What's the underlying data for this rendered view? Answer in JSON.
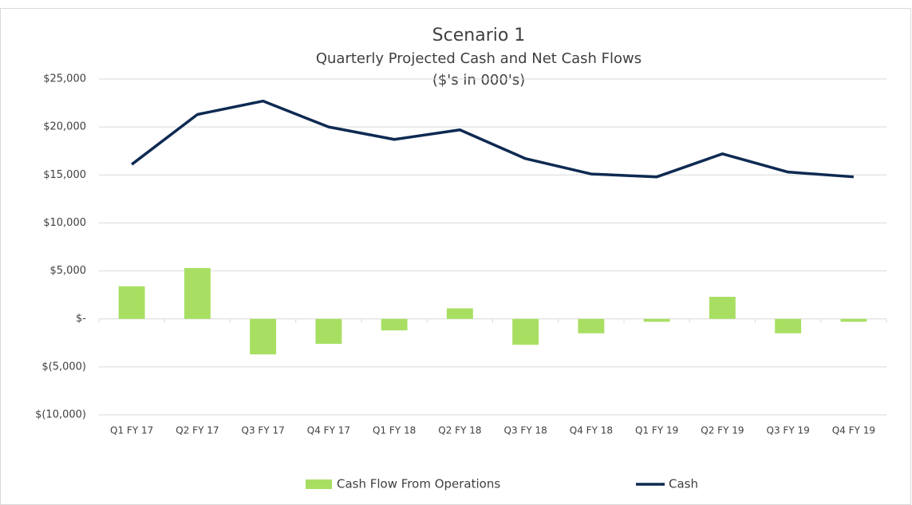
{
  "chart_data": {
    "type": "bar",
    "title": "Scenario 1",
    "subtitle": "Quarterly Projected Cash and Net Cash Flows",
    "units_note": "($'s in 000's)",
    "categories": [
      "Q1 FY 17",
      "Q2 FY 17",
      "Q3 FY 17",
      "Q4 FY 17",
      "Q1 FY 18",
      "Q2 FY 18",
      "Q3 FY 18",
      "Q4 FY 18",
      "Q1 FY 19",
      "Q2 FY 19",
      "Q3 FY 19",
      "Q4 FY 19"
    ],
    "series": [
      {
        "name": "Cash Flow From Operations",
        "type": "bar",
        "color": "#a8df63",
        "values": [
          3400,
          5300,
          -3700,
          -2600,
          -1200,
          1100,
          -2700,
          -1500,
          -300,
          2300,
          -1500,
          -300
        ]
      },
      {
        "name": "Cash",
        "type": "line",
        "color": "#0e2a52",
        "values": [
          16100,
          21300,
          22700,
          20000,
          18700,
          19700,
          16700,
          15100,
          14800,
          17200,
          15300,
          14800
        ]
      }
    ],
    "ylim": [
      -10000,
      25000
    ],
    "yticks": [
      {
        "value": -10000,
        "label": "$(10,000)"
      },
      {
        "value": -5000,
        "label": "$(5,000)"
      },
      {
        "value": 0,
        "label": "$-"
      },
      {
        "value": 5000,
        "label": "$5,000"
      },
      {
        "value": 10000,
        "label": "$10,000"
      },
      {
        "value": 15000,
        "label": "$15,000"
      },
      {
        "value": 20000,
        "label": "$20,000"
      },
      {
        "value": 25000,
        "label": "$25,000"
      }
    ],
    "grid": true,
    "legend": "bottom"
  }
}
